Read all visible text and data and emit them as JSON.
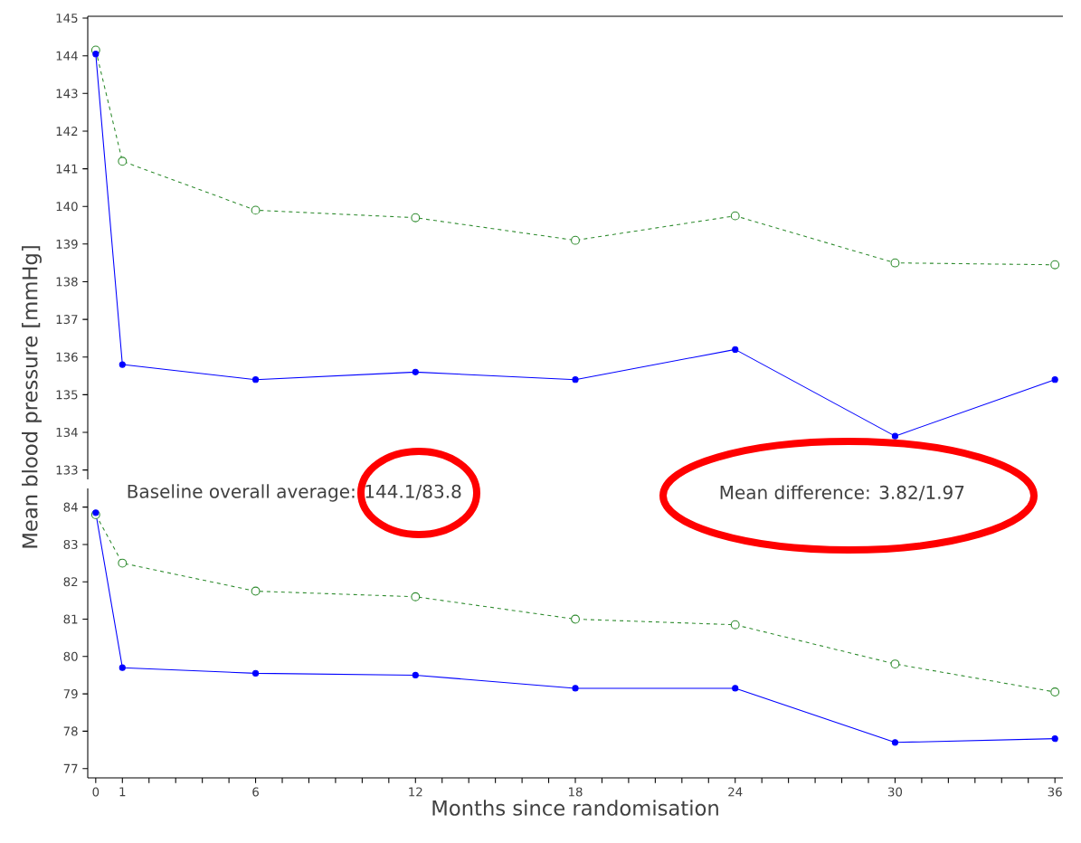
{
  "chart_data": [
    {
      "type": "line",
      "x": [
        0,
        1,
        6,
        12,
        18,
        24,
        30,
        36
      ],
      "ylabel": "Mean blood pressure [mmHg]",
      "annotations": [
        "Baseline overall average: 144.1/83.8",
        "Mean difference: 3.82/1.97"
      ],
      "series": [
        {
          "color": "#2e8b2e",
          "marker": "circle",
          "line_style": "dashed",
          "values": [
            144.15,
            141.2,
            139.9,
            139.7,
            139.1,
            139.75,
            138.5,
            138.45
          ]
        },
        {
          "color": "#0000ff",
          "marker": "circle",
          "line_style": "solid",
          "values": [
            144.05,
            135.8,
            135.4,
            135.6,
            135.4,
            136.2,
            133.9,
            135.4
          ]
        }
      ],
      "xlim": [
        -0.3,
        36.3
      ],
      "ylim": [
        132.75,
        145.05
      ],
      "yticks": [
        133,
        134,
        135,
        136,
        137,
        138,
        139,
        140,
        141,
        142,
        143,
        144,
        145
      ],
      "tick_labels": "y"
    },
    {
      "type": "line",
      "x": [
        0,
        1,
        6,
        12,
        18,
        24,
        30,
        36
      ],
      "xlabel": "Months since randomisation",
      "series": [
        {
          "color": "#2e8b2e",
          "marker": "circle",
          "line_style": "dashed",
          "values": [
            83.8,
            82.5,
            81.75,
            81.6,
            81.0,
            80.85,
            79.8,
            79.05
          ]
        },
        {
          "color": "#0000ff",
          "marker": "circle",
          "line_style": "solid",
          "values": [
            83.85,
            79.7,
            79.55,
            79.5,
            79.15,
            79.15,
            77.7,
            77.8
          ]
        }
      ],
      "xlim": [
        -0.3,
        36.3
      ],
      "ylim": [
        76.75,
        84.5
      ],
      "yticks": [
        77,
        78,
        79,
        80,
        81,
        82,
        83,
        84
      ],
      "xticks": [
        0,
        1,
        {
          "value": 2,
          "label": null
        },
        {
          "value": 3,
          "label": null
        },
        {
          "value": 4,
          "label": null
        },
        {
          "value": 5,
          "label": null
        },
        6,
        {
          "value": 7,
          "label": null
        },
        {
          "value": 8,
          "label": null
        },
        {
          "value": 9,
          "label": null
        },
        {
          "value": 10,
          "label": null
        },
        {
          "value": 11,
          "label": null
        },
        12,
        {
          "value": 13,
          "label": null
        },
        {
          "value": 14,
          "label": null
        },
        {
          "value": 15,
          "label": null
        },
        {
          "value": 16,
          "label": null
        },
        {
          "value": 17,
          "label": null
        },
        18,
        {
          "value": 19,
          "label": null
        },
        {
          "value": 20,
          "label": null
        },
        {
          "value": 21,
          "label": null
        },
        {
          "value": 22,
          "label": null
        },
        {
          "value": 23,
          "label": null
        },
        24,
        {
          "value": 25,
          "label": null
        },
        {
          "value": 26,
          "label": null
        },
        {
          "value": 27,
          "label": null
        },
        {
          "value": 28,
          "label": null
        },
        {
          "value": 29,
          "label": null
        },
        30,
        {
          "value": 31,
          "label": null
        },
        {
          "value": 32,
          "label": null
        },
        {
          "value": 33,
          "label": null
        },
        {
          "value": 34,
          "label": null
        },
        {
          "value": 35,
          "label": null
        },
        36
      ]
    }
  ]
}
